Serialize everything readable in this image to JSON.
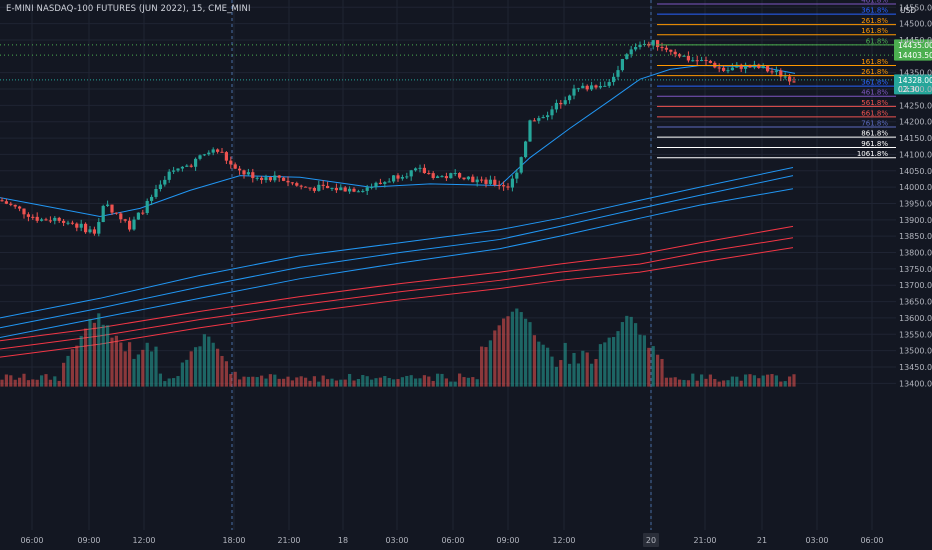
{
  "header": {
    "title": "E-MINI NASDAQ-100 FUTURES (JUN 2022), 15, CME_MINI",
    "currency": "USD"
  },
  "chart_data": {
    "type": "candlestick",
    "yaxis": {
      "range": [
        13390,
        14560
      ],
      "ticks": [
        "14550.00",
        "14500.00",
        "14450.00",
        "14350.00",
        "14300.00",
        "14250.00",
        "14200.00",
        "14150.00",
        "14100.00",
        "14050.00",
        "14000.00",
        "13950.00",
        "13900.00",
        "13850.00",
        "13800.00",
        "13750.00",
        "13700.00",
        "13650.00",
        "13600.00",
        "13550.00",
        "13500.00",
        "13450.00",
        "13400.00"
      ]
    },
    "xaxis": {
      "ticks": [
        "06:00",
        "09:00",
        "12:00",
        "18:00",
        "21:00",
        "18",
        "03:00",
        "06:00",
        "09:00",
        "12:00",
        "20",
        "21:00",
        "21",
        "03:00",
        "06:00"
      ],
      "session_breaks": [
        "18:00",
        "20"
      ]
    },
    "price_labels": [
      {
        "label": "14435.00",
        "value": 14435,
        "color": "#4caf50"
      },
      {
        "label": "14403.50",
        "value": 14403.5,
        "color": "#4caf50"
      },
      {
        "label": "14328.00",
        "value": 14328,
        "color": "#26a69a",
        "countdown": "02:30"
      }
    ],
    "fib_levels": [
      {
        "label": "461.8%",
        "value": 14560,
        "color": "#7e57c2"
      },
      {
        "label": "361.8%",
        "value": 14529,
        "color": "#2962ff"
      },
      {
        "label": "261.8%",
        "value": 14497,
        "color": "#ff9800"
      },
      {
        "label": "161.8%",
        "value": 14466,
        "color": "#ff9800"
      },
      {
        "label": "61.8%",
        "value": 14435,
        "color": "#4caf50"
      },
      {
        "label": "161.8%",
        "value": 14372,
        "color": "#ff9800"
      },
      {
        "label": "261.8%",
        "value": 14341,
        "color": "#ff9800"
      },
      {
        "label": "361.8%",
        "value": 14309,
        "color": "#2962ff"
      },
      {
        "label": "461.8%",
        "value": 14278,
        "color": "#7e57c2"
      },
      {
        "label": "561.8%",
        "value": 14247,
        "color": "#ef5350"
      },
      {
        "label": "661.8%",
        "value": 14215,
        "color": "#ef5350"
      },
      {
        "label": "761.8%",
        "value": 14184,
        "color": "#5c6bc0"
      },
      {
        "label": "861.8%",
        "value": 14153,
        "color": "#ffffff"
      },
      {
        "label": "961.8%",
        "value": 14121,
        "color": "#ffffff"
      },
      {
        "label": "1061.8%",
        "value": 14090,
        "color": "#ffffff"
      }
    ],
    "moving_averages": [
      {
        "color": "#2196f3",
        "points": [
          [
            0,
            13968
          ],
          [
            40,
            13945
          ],
          [
            100,
            13910
          ],
          [
            140,
            13935
          ],
          [
            190,
            13990
          ],
          [
            240,
            14035
          ],
          [
            300,
            14030
          ],
          [
            370,
            14000
          ],
          [
            430,
            14010
          ],
          [
            500,
            14005
          ],
          [
            530,
            14090
          ],
          [
            570,
            14180
          ],
          [
            610,
            14265
          ],
          [
            640,
            14330
          ],
          [
            670,
            14360
          ],
          [
            700,
            14372
          ],
          [
            760,
            14368
          ],
          [
            795,
            14348
          ]
        ]
      },
      {
        "color": "#2196f3",
        "points": [
          [
            0,
            13600
          ],
          [
            100,
            13660
          ],
          [
            200,
            13730
          ],
          [
            300,
            13790
          ],
          [
            400,
            13830
          ],
          [
            500,
            13870
          ],
          [
            560,
            13905
          ],
          [
            640,
            13960
          ],
          [
            700,
            14000
          ],
          [
            793,
            14060
          ]
        ]
      },
      {
        "color": "#2196f3",
        "points": [
          [
            0,
            13570
          ],
          [
            100,
            13630
          ],
          [
            200,
            13695
          ],
          [
            300,
            13755
          ],
          [
            400,
            13800
          ],
          [
            500,
            13840
          ],
          [
            560,
            13880
          ],
          [
            640,
            13935
          ],
          [
            700,
            13975
          ],
          [
            793,
            14035
          ]
        ]
      },
      {
        "color": "#2196f3",
        "points": [
          [
            0,
            13540
          ],
          [
            100,
            13600
          ],
          [
            200,
            13660
          ],
          [
            300,
            13720
          ],
          [
            400,
            13768
          ],
          [
            500,
            13812
          ],
          [
            560,
            13850
          ],
          [
            640,
            13905
          ],
          [
            700,
            13945
          ],
          [
            793,
            13995
          ]
        ]
      },
      {
        "color": "#f23645",
        "points": [
          [
            0,
            13530
          ],
          [
            100,
            13570
          ],
          [
            200,
            13620
          ],
          [
            300,
            13665
          ],
          [
            400,
            13705
          ],
          [
            500,
            13740
          ],
          [
            560,
            13765
          ],
          [
            640,
            13795
          ],
          [
            700,
            13830
          ],
          [
            793,
            13880
          ]
        ]
      },
      {
        "color": "#f23645",
        "points": [
          [
            0,
            13505
          ],
          [
            100,
            13545
          ],
          [
            200,
            13595
          ],
          [
            300,
            13640
          ],
          [
            400,
            13680
          ],
          [
            500,
            13715
          ],
          [
            560,
            13740
          ],
          [
            640,
            13765
          ],
          [
            700,
            13800
          ],
          [
            793,
            13845
          ]
        ]
      },
      {
        "color": "#f23645",
        "points": [
          [
            0,
            13480
          ],
          [
            100,
            13520
          ],
          [
            200,
            13570
          ],
          [
            300,
            13615
          ],
          [
            400,
            13655
          ],
          [
            500,
            13690
          ],
          [
            560,
            13715
          ],
          [
            640,
            13740
          ],
          [
            700,
            13770
          ],
          [
            793,
            13815
          ]
        ]
      }
    ],
    "price_path": [
      [
        0,
        13960
      ],
      [
        20,
        13930
      ],
      [
        40,
        13900
      ],
      [
        60,
        13905
      ],
      [
        80,
        13880
      ],
      [
        95,
        13860
      ],
      [
        105,
        13950
      ],
      [
        120,
        13910
      ],
      [
        130,
        13880
      ],
      [
        150,
        13960
      ],
      [
        170,
        14040
      ],
      [
        190,
        14070
      ],
      [
        210,
        14110
      ],
      [
        220,
        14110
      ],
      [
        235,
        14050
      ],
      [
        260,
        14030
      ],
      [
        280,
        14030
      ],
      [
        300,
        14000
      ],
      [
        330,
        13995
      ],
      [
        360,
        13995
      ],
      [
        380,
        14010
      ],
      [
        400,
        14040
      ],
      [
        420,
        14050
      ],
      [
        440,
        14030
      ],
      [
        460,
        14040
      ],
      [
        480,
        14015
      ],
      [
        500,
        14010
      ],
      [
        510,
        14000
      ],
      [
        520,
        14080
      ],
      [
        530,
        14200
      ],
      [
        550,
        14230
      ],
      [
        570,
        14290
      ],
      [
        590,
        14310
      ],
      [
        610,
        14320
      ],
      [
        625,
        14400
      ],
      [
        640,
        14440
      ],
      [
        655,
        14440
      ],
      [
        670,
        14420
      ],
      [
        690,
        14390
      ],
      [
        710,
        14380
      ],
      [
        725,
        14355
      ],
      [
        740,
        14370
      ],
      [
        760,
        14365
      ],
      [
        780,
        14345
      ],
      [
        795,
        14328
      ]
    ],
    "volume_peaks": [
      [
        97,
        13625
      ],
      [
        205,
        13560
      ],
      [
        515,
        13650
      ],
      [
        628,
        13620
      ]
    ]
  }
}
